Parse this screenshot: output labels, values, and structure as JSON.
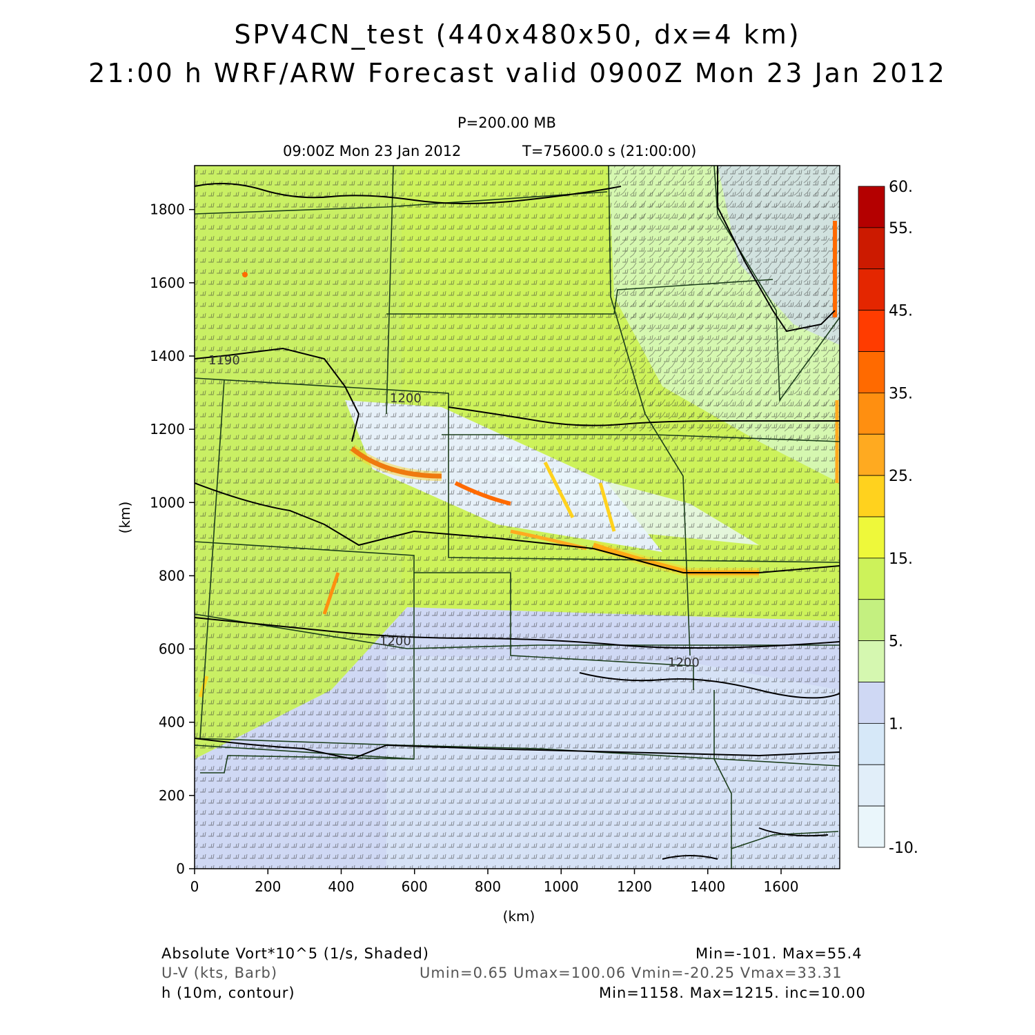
{
  "title": {
    "line1": "SPV4CN_test (440x480x50, dx=4 km)",
    "line2": "21:00 h WRF/ARW Forecast valid 0900Z Mon 23 Jan 2012"
  },
  "subtitle": {
    "level": "P=200.00 MB",
    "time": "09:00Z Mon 23 Jan 2012",
    "tsec": "T=75600.0 s (21:00:00)"
  },
  "axes": {
    "x_ticks": [
      "0",
      "200",
      "400",
      "600",
      "800",
      "1000",
      "1200",
      "1400",
      "1600"
    ],
    "y_ticks": [
      "0",
      "200",
      "400",
      "600",
      "800",
      "1000",
      "1200",
      "1400",
      "1600",
      "1800"
    ],
    "xlabel": "(km)",
    "ylabel": "(km)"
  },
  "contour_labels": [
    "1190",
    "1200",
    "1200",
    "1200"
  ],
  "colorbar": {
    "labels": [
      "60.",
      "55.",
      "45.",
      "35.",
      "25.",
      "15.",
      "5.",
      "1.",
      "-10."
    ],
    "colors": [
      "#b40000",
      "#cc1a00",
      "#e42600",
      "#ff3c00",
      "#ff6a00",
      "#ff8f10",
      "#ffaa20",
      "#ffd21e",
      "#eef83a",
      "#cdf25a",
      "#c4f080",
      "#d5f7b0",
      "#cfd8f4",
      "#d6e8f8",
      "#e1eef9",
      "#eaf6fb"
    ]
  },
  "legend": {
    "field1": "Absolute Vort*10^5 (1/s, Shaded)",
    "stats1": "Min=-101. Max=55.4",
    "field2": "U-V (kts, Barb)",
    "stats2": "Umin=0.65 Umax=100.06 Vmin=-20.25 Vmax=33.31",
    "field3": "h (10m, contour)",
    "stats3": "Min=1158. Max=1215. inc=10.00"
  }
}
